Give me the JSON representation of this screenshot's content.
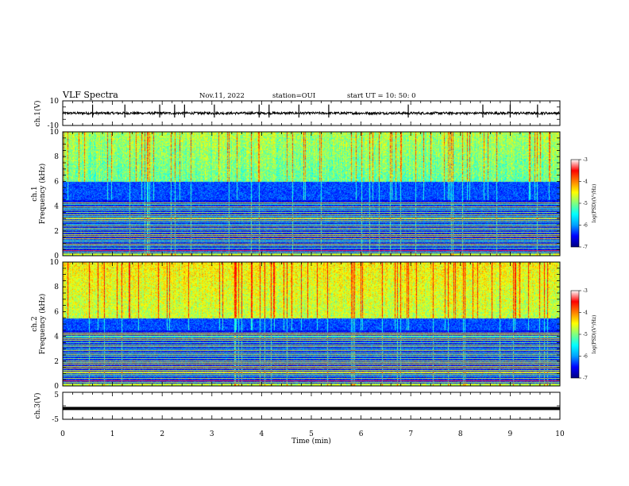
{
  "header": {
    "title": "VLF Spectra",
    "date": "Nov.11, 2022",
    "station": "station=OUI",
    "start": "start  UT =   10: 50: 0"
  },
  "chart_data": [
    {
      "type": "line",
      "name": "ch1-waveform",
      "ylabel": "ch.1(V)",
      "ylim": [
        -10,
        10
      ],
      "yticks": [
        "10",
        "-10"
      ],
      "baseline": 0,
      "noise_amplitude": 1.2,
      "spike_times_min": [
        0.6,
        1.25,
        1.95,
        2.25,
        2.45,
        3.05,
        3.95,
        4.15,
        4.75,
        5.35,
        6.95,
        8.45,
        9.0,
        9.55
      ]
    },
    {
      "type": "heatmap",
      "name": "ch1-spectrogram",
      "ylabel_top": "ch.1",
      "ylabel": "Frequency (kHz)",
      "xlim": [
        0,
        10
      ],
      "ylim": [
        0,
        10
      ],
      "yticks": [
        "0",
        "2",
        "4",
        "6",
        "8",
        "10"
      ],
      "colorbar": {
        "label": "log(PSD)(V²/Hz)",
        "ticks": [
          "-3",
          "-4",
          "-5",
          "-6",
          "-7"
        ],
        "range": [
          -7,
          -3
        ]
      },
      "description_bands_khz": {
        "strong_hiss_above": 6.0,
        "quiet_gap": [
          4.5,
          6.0
        ],
        "harmonic_lines_below": 4.5
      }
    },
    {
      "type": "heatmap",
      "name": "ch2-spectrogram",
      "ylabel_top": "ch.2",
      "ylabel": "Frequency (kHz)",
      "xlim": [
        0,
        10
      ],
      "ylim": [
        0,
        10
      ],
      "yticks": [
        "0",
        "2",
        "4",
        "6",
        "8",
        "10"
      ],
      "colorbar": {
        "label": "log(PSD)(V²/Hz)",
        "ticks": [
          "-3",
          "-4",
          "-5",
          "-6",
          "-7"
        ],
        "range": [
          -7,
          -3
        ]
      },
      "description_bands_khz": {
        "strong_hiss_above": 5.5,
        "quiet_gap": [
          4.5,
          5.5
        ],
        "harmonic_lines_below": 4.5
      }
    },
    {
      "type": "line",
      "name": "ch3-waveform",
      "ylabel": "ch.3(V)",
      "ylim": [
        -5,
        5
      ],
      "yticks": [
        "5",
        "-5"
      ],
      "constant_value": -1.0
    }
  ],
  "xaxis": {
    "label": "Time (min)",
    "ticks": [
      "0",
      "1",
      "2",
      "3",
      "4",
      "5",
      "6",
      "7",
      "8",
      "9",
      "10"
    ],
    "xlim": [
      0,
      10
    ]
  },
  "colors": {
    "colormap": [
      "#000080",
      "#0000ff",
      "#00a0ff",
      "#00ffff",
      "#80ff80",
      "#ffff00",
      "#ff8000",
      "#ff0000",
      "#ffffff"
    ],
    "trace": "#000000"
  }
}
